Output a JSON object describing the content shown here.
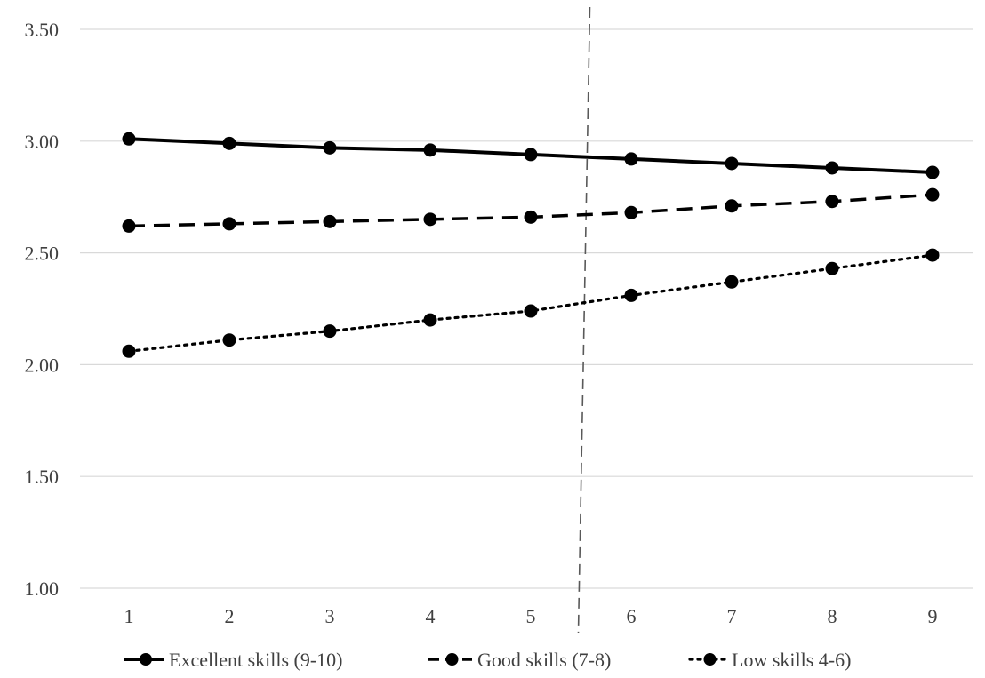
{
  "chart_data": {
    "type": "line",
    "x": [
      1,
      2,
      3,
      4,
      5,
      6,
      7,
      8,
      9
    ],
    "ylim": [
      1.0,
      3.5
    ],
    "yticks": [
      "1.00",
      "1.50",
      "2.00",
      "2.50",
      "3.00",
      "3.50"
    ],
    "ytick_values": [
      1.0,
      1.5,
      2.0,
      2.5,
      3.0,
      3.5
    ],
    "xticks": [
      "1",
      "2",
      "3",
      "4",
      "5",
      "6",
      "7",
      "8",
      "9"
    ],
    "grid": "horizontal",
    "legend_position": "bottom",
    "reference_line_x": 5.5,
    "series": [
      {
        "name": "Excellent skills (9-10)",
        "style": "solid",
        "values": [
          3.01,
          2.99,
          2.97,
          2.96,
          2.94,
          2.92,
          2.9,
          2.88,
          2.86
        ]
      },
      {
        "name": "Good skills (7-8)",
        "style": "dashed",
        "values": [
          2.62,
          2.63,
          2.64,
          2.65,
          2.66,
          2.68,
          2.71,
          2.73,
          2.76
        ]
      },
      {
        "name": "Low skills 4-6)",
        "style": "dotted",
        "values": [
          2.06,
          2.11,
          2.15,
          2.2,
          2.24,
          2.31,
          2.37,
          2.43,
          2.49
        ]
      }
    ],
    "colors": {
      "series": "#000000",
      "grid": "#d9d9d9",
      "reference_line": "#595959",
      "text": "#404040"
    }
  }
}
